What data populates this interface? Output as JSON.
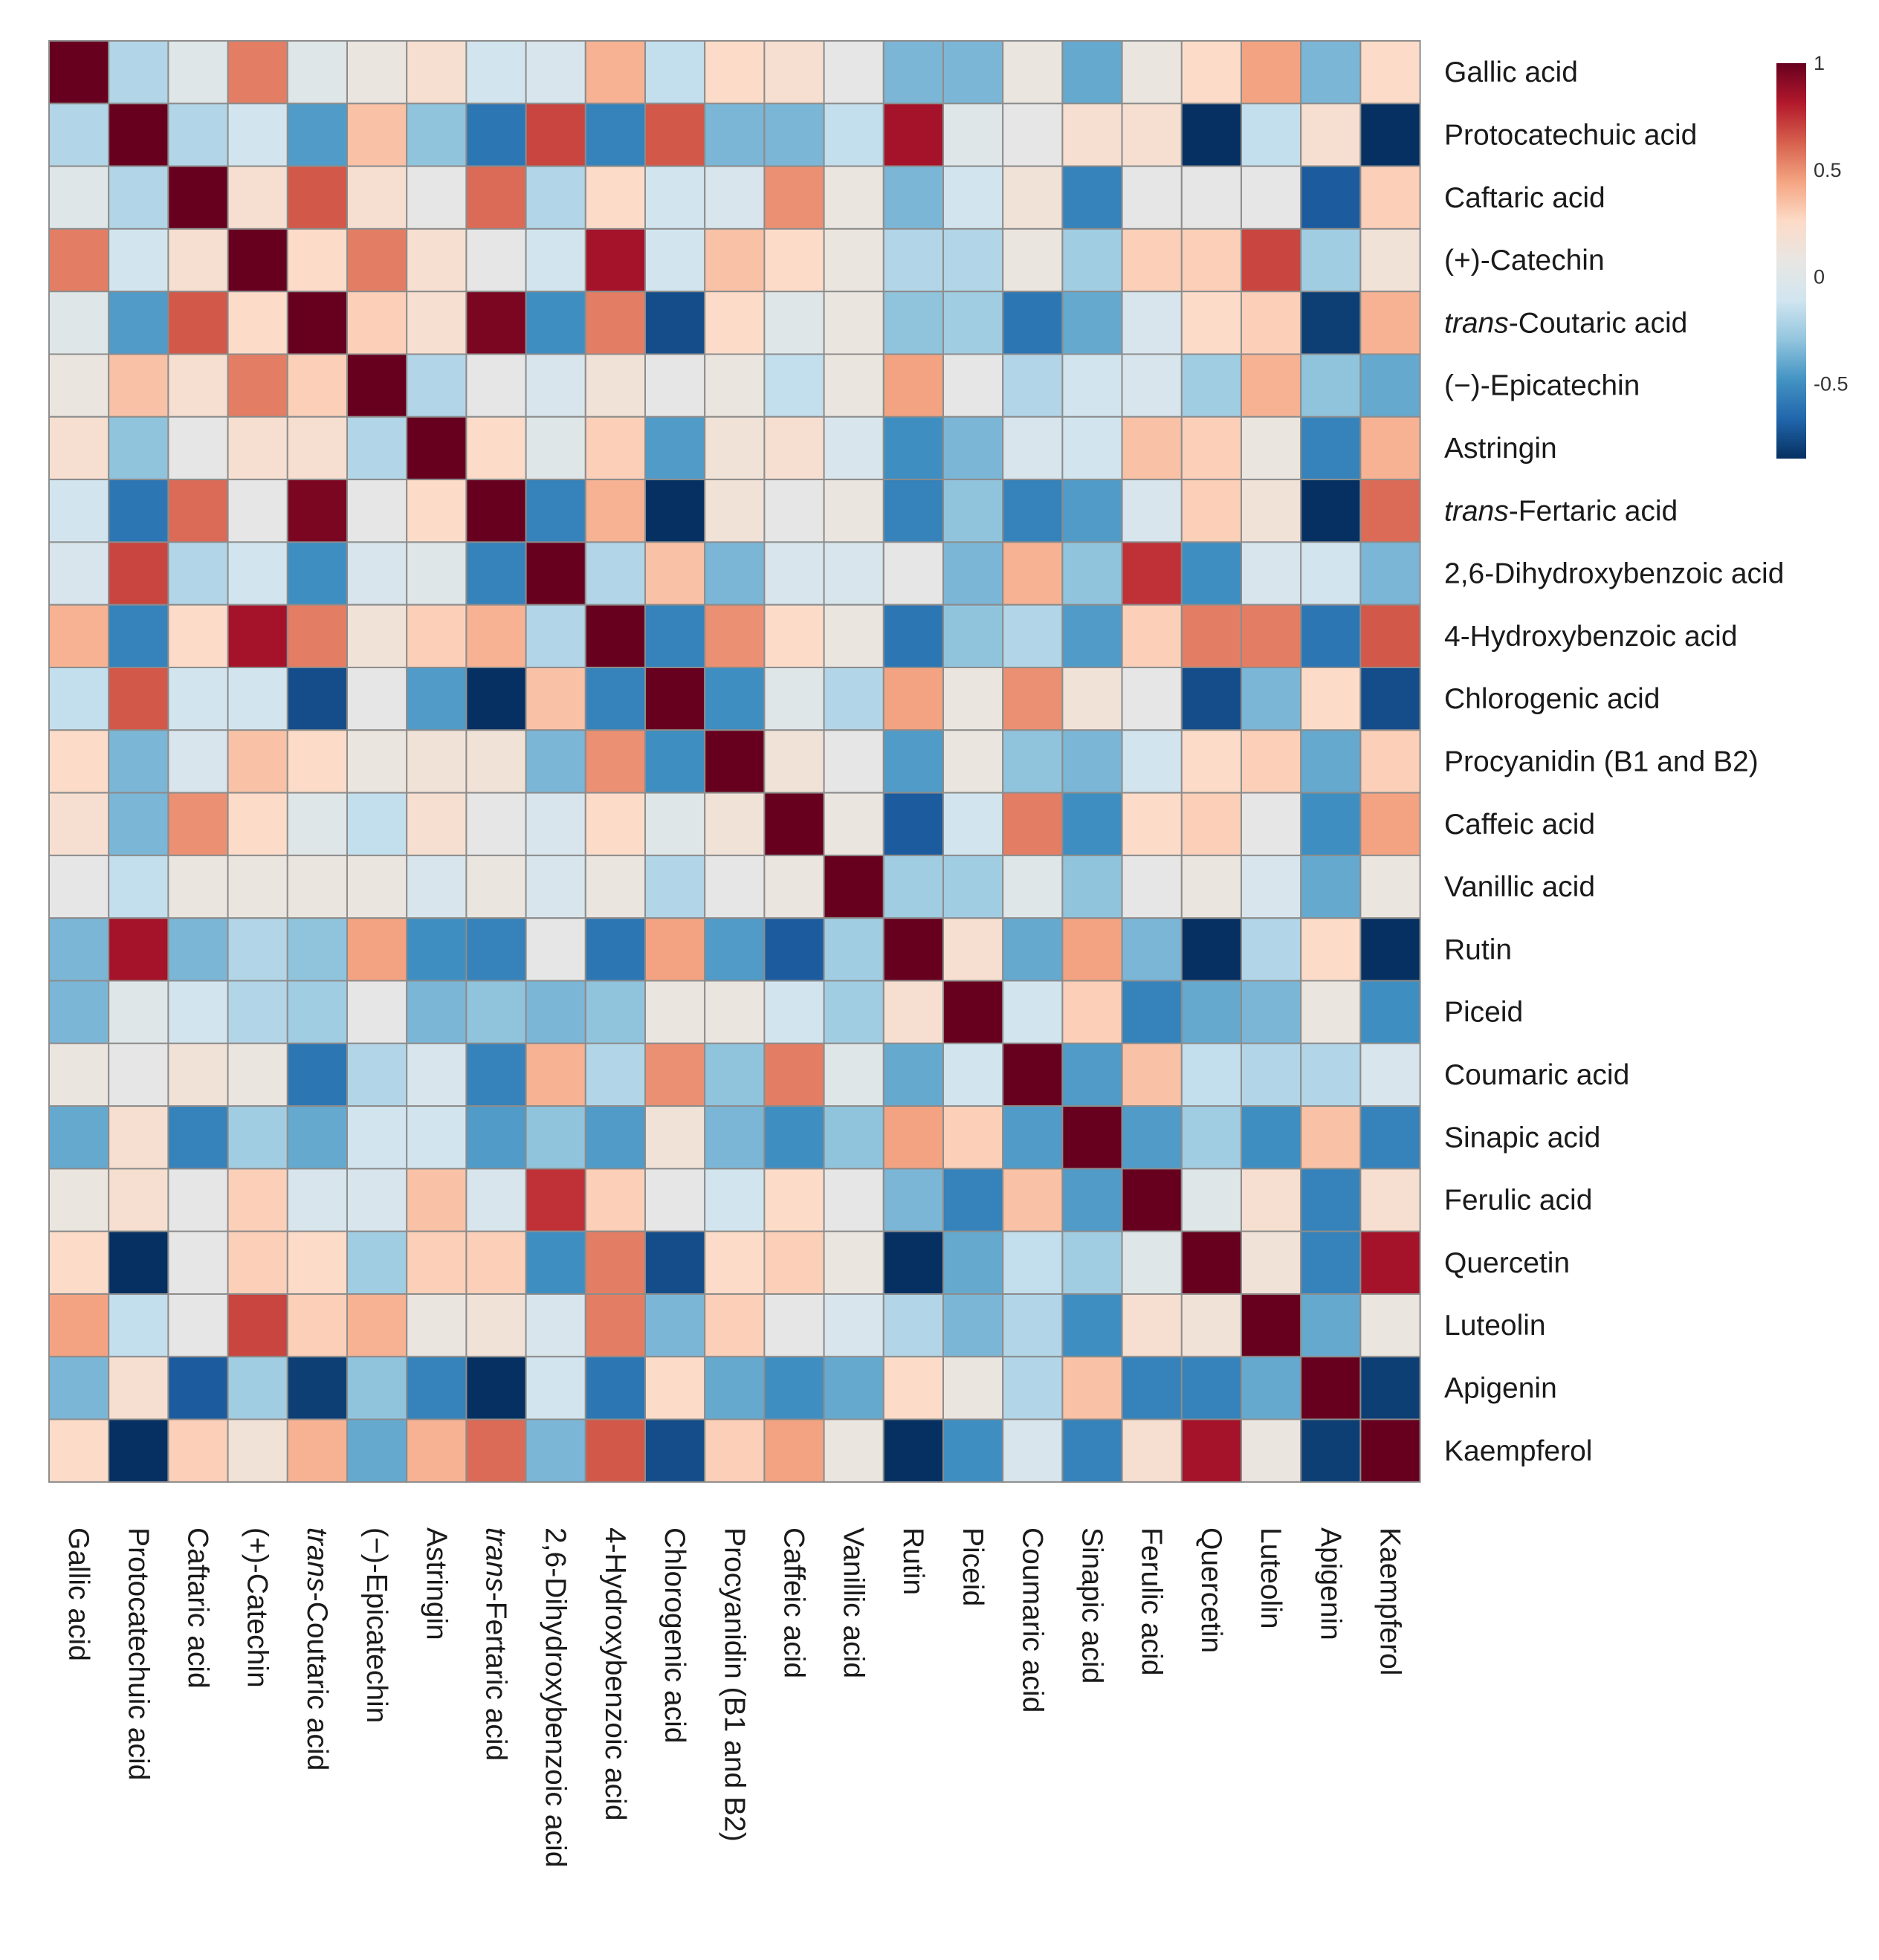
{
  "chart_data": {
    "type": "heatmap",
    "title": "",
    "xlabel": "",
    "ylabel": "",
    "labels": [
      {
        "prefix": "",
        "text": "Gallic acid"
      },
      {
        "prefix": "",
        "text": "Protocatechuic acid"
      },
      {
        "prefix": "",
        "text": "Caftaric acid"
      },
      {
        "prefix": "",
        "text": "(+)-Catechin"
      },
      {
        "prefix": "trans",
        "text": "-Coutaric acid"
      },
      {
        "prefix": "",
        "text": "(−)-Epicatechin"
      },
      {
        "prefix": "",
        "text": "Astringin"
      },
      {
        "prefix": "trans",
        "text": "-Fertaric acid"
      },
      {
        "prefix": "",
        "text": "2,6-Dihydroxybenzoic acid"
      },
      {
        "prefix": "",
        "text": "4-Hydroxybenzoic acid"
      },
      {
        "prefix": "",
        "text": "Chlorogenic acid"
      },
      {
        "prefix": "",
        "text": "Procyanidin (B1 and B2)"
      },
      {
        "prefix": "",
        "text": "Caffeic acid"
      },
      {
        "prefix": "",
        "text": "Vanillic acid"
      },
      {
        "prefix": "",
        "text": "Rutin"
      },
      {
        "prefix": "",
        "text": "Piceid"
      },
      {
        "prefix": "",
        "text": "Coumaric acid"
      },
      {
        "prefix": "",
        "text": "Sinapic acid"
      },
      {
        "prefix": "",
        "text": "Ferulic acid"
      },
      {
        "prefix": "",
        "text": "Quercetin"
      },
      {
        "prefix": "",
        "text": "Luteolin"
      },
      {
        "prefix": "",
        "text": "Apigenin"
      },
      {
        "prefix": "",
        "text": "Kaempferol"
      }
    ],
    "values": [
      [
        1,
        -0.2,
        0,
        0.55,
        0,
        0.1,
        0.2,
        -0.1,
        -0.05,
        0.4,
        -0.15,
        0.25,
        0.2,
        0.05,
        -0.35,
        -0.35,
        0.1,
        -0.4,
        0.1,
        0.25,
        0.45,
        -0.35,
        0.25
      ],
      [
        -0.2,
        1,
        -0.2,
        -0.1,
        -0.45,
        0.35,
        -0.3,
        -0.6,
        0.7,
        -0.55,
        0.65,
        -0.35,
        -0.35,
        -0.15,
        0.85,
        0,
        0.05,
        0.2,
        0.2,
        -0.9,
        -0.15,
        0.2,
        -0.85
      ],
      [
        0,
        -0.2,
        1,
        0.2,
        0.65,
        0.2,
        0.05,
        0.6,
        -0.2,
        0.25,
        -0.1,
        -0.05,
        0.5,
        0.1,
        -0.35,
        -0.1,
        0.15,
        -0.55,
        0.05,
        0.05,
        0.05,
        -0.7,
        0.3
      ],
      [
        0.55,
        -0.1,
        0.2,
        1,
        0.25,
        0.55,
        0.2,
        0.05,
        -0.1,
        0.85,
        -0.1,
        0.35,
        0.25,
        0.1,
        -0.2,
        -0.2,
        0.1,
        -0.25,
        0.3,
        0.3,
        0.7,
        -0.25,
        0.15
      ],
      [
        0,
        -0.45,
        0.65,
        0.25,
        1,
        0.3,
        0.2,
        0.95,
        -0.5,
        0.55,
        -0.75,
        0.25,
        0,
        0.1,
        -0.3,
        -0.25,
        -0.6,
        -0.4,
        -0.05,
        0.25,
        0.3,
        -0.8,
        0.4
      ],
      [
        0.1,
        0.35,
        0.2,
        0.55,
        0.3,
        1,
        -0.2,
        0.05,
        -0.05,
        0.15,
        0.05,
        0.1,
        -0.15,
        0.1,
        0.45,
        0.05,
        -0.2,
        -0.1,
        -0.05,
        -0.25,
        0.4,
        -0.3,
        -0.4
      ],
      [
        0.2,
        -0.3,
        0.05,
        0.2,
        0.2,
        -0.2,
        1,
        0.25,
        0,
        0.3,
        -0.45,
        0.15,
        0.2,
        -0.05,
        -0.5,
        -0.35,
        -0.05,
        -0.1,
        0.35,
        0.3,
        0.1,
        -0.55,
        0.4
      ],
      [
        -0.1,
        -0.6,
        0.6,
        0.05,
        0.95,
        0.05,
        0.25,
        1,
        -0.55,
        0.4,
        -0.9,
        0.15,
        0.05,
        0.1,
        -0.55,
        -0.3,
        -0.55,
        -0.45,
        -0.05,
        0.3,
        0.15,
        -0.9,
        0.6
      ],
      [
        -0.05,
        0.7,
        -0.2,
        -0.1,
        -0.5,
        -0.05,
        0,
        -0.55,
        1,
        -0.2,
        0.35,
        -0.35,
        -0.05,
        -0.05,
        0.05,
        -0.35,
        0.4,
        -0.3,
        0.75,
        -0.5,
        -0.05,
        -0.1,
        -0.35
      ],
      [
        0.4,
        -0.55,
        0.25,
        0.85,
        0.55,
        0.15,
        0.3,
        0.4,
        -0.2,
        1,
        -0.55,
        0.5,
        0.25,
        0.1,
        -0.6,
        -0.3,
        -0.2,
        -0.45,
        0.3,
        0.55,
        0.55,
        -0.6,
        0.65
      ],
      [
        -0.15,
        0.65,
        -0.1,
        -0.1,
        -0.75,
        0.05,
        -0.45,
        -0.9,
        0.35,
        -0.55,
        1,
        -0.5,
        0,
        -0.2,
        0.45,
        0.1,
        0.5,
        0.15,
        0.05,
        -0.75,
        -0.35,
        0.25,
        -0.75
      ],
      [
        0.25,
        -0.35,
        -0.05,
        0.35,
        0.25,
        0.1,
        0.15,
        0.15,
        -0.35,
        0.5,
        -0.5,
        1,
        0.15,
        0.05,
        -0.45,
        0.1,
        -0.3,
        -0.35,
        -0.1,
        0.25,
        0.3,
        -0.4,
        0.3
      ],
      [
        0.2,
        -0.35,
        0.5,
        0.25,
        0,
        -0.15,
        0.2,
        0.05,
        -0.05,
        0.25,
        0,
        0.15,
        1,
        0.1,
        -0.7,
        -0.1,
        0.55,
        -0.5,
        0.25,
        0.3,
        0.05,
        -0.5,
        0.45
      ],
      [
        0.05,
        -0.15,
        0.1,
        0.1,
        0.1,
        0.1,
        -0.05,
        0.1,
        -0.05,
        0.1,
        -0.2,
        0.05,
        0.1,
        1,
        -0.25,
        -0.25,
        0,
        -0.3,
        0.05,
        0.1,
        -0.05,
        -0.4,
        0.1
      ],
      [
        -0.35,
        0.85,
        -0.35,
        -0.2,
        -0.3,
        0.45,
        -0.5,
        -0.55,
        0.05,
        -0.6,
        0.45,
        -0.45,
        -0.7,
        -0.25,
        1,
        0.2,
        -0.4,
        0.45,
        -0.35,
        -0.95,
        -0.2,
        0.25,
        -1
      ],
      [
        -0.35,
        0,
        -0.1,
        -0.2,
        -0.25,
        0.05,
        -0.35,
        -0.3,
        -0.35,
        -0.3,
        0.1,
        0.1,
        -0.1,
        -0.25,
        0.2,
        1,
        -0.1,
        0.3,
        -0.55,
        -0.4,
        -0.35,
        0.1,
        -0.5
      ],
      [
        0.1,
        0.05,
        0.15,
        0.1,
        -0.6,
        -0.2,
        -0.05,
        -0.55,
        0.4,
        -0.2,
        0.5,
        -0.3,
        0.55,
        0,
        -0.4,
        -0.1,
        1,
        -0.45,
        0.35,
        -0.15,
        -0.2,
        -0.2,
        -0.05
      ],
      [
        -0.4,
        0.2,
        -0.55,
        -0.25,
        -0.4,
        -0.1,
        -0.1,
        -0.45,
        -0.3,
        -0.45,
        0.15,
        -0.35,
        -0.5,
        -0.3,
        0.45,
        0.3,
        -0.45,
        1,
        -0.45,
        -0.25,
        -0.5,
        0.35,
        -0.55
      ],
      [
        0.1,
        0.2,
        0.05,
        0.3,
        -0.05,
        -0.05,
        0.35,
        -0.05,
        0.75,
        0.3,
        0.05,
        -0.1,
        0.25,
        0.05,
        -0.35,
        -0.55,
        0.35,
        -0.45,
        1,
        0,
        0.2,
        -0.55,
        0.2
      ],
      [
        0.25,
        -0.9,
        0.05,
        0.3,
        0.25,
        -0.25,
        0.3,
        0.3,
        -0.5,
        0.55,
        -0.75,
        0.25,
        0.3,
        0.1,
        -0.95,
        -0.4,
        -0.15,
        -0.25,
        0,
        1,
        0.15,
        -0.55,
        0.85
      ],
      [
        0.45,
        -0.15,
        0.05,
        0.7,
        0.3,
        0.4,
        0.1,
        0.15,
        -0.05,
        0.55,
        -0.35,
        0.3,
        0.05,
        -0.05,
        -0.2,
        -0.35,
        -0.2,
        -0.5,
        0.2,
        0.15,
        1,
        -0.4,
        0.1
      ],
      [
        -0.35,
        0.2,
        -0.7,
        -0.25,
        -0.8,
        -0.3,
        -0.55,
        -0.9,
        -0.1,
        -0.6,
        0.25,
        -0.4,
        -0.5,
        -0.4,
        0.25,
        0.1,
        -0.2,
        0.35,
        -0.55,
        -0.55,
        -0.4,
        1,
        -0.8
      ],
      [
        0.25,
        -0.85,
        0.3,
        0.15,
        0.4,
        -0.4,
        0.4,
        0.6,
        -0.35,
        0.65,
        -0.75,
        0.3,
        0.45,
        0.1,
        -1,
        -0.5,
        -0.05,
        -0.55,
        0.2,
        0.85,
        0.1,
        -0.8,
        1
      ]
    ],
    "colorbar": {
      "range": [
        -0.85,
        1
      ],
      "ticks": [
        {
          "value": 1,
          "label": "1"
        },
        {
          "value": 0.5,
          "label": "0.5"
        },
        {
          "value": 0,
          "label": "0"
        },
        {
          "value": -0.5,
          "label": "-0.5"
        }
      ],
      "palette": [
        "#053061",
        "#2166ac",
        "#4393c3",
        "#92c5de",
        "#d1e5f0",
        "#e8e6e3",
        "#fddbc7",
        "#f4a582",
        "#d6604d",
        "#b2182b",
        "#67001f"
      ]
    },
    "grid": true,
    "cell_border_color": "#8c8c8c"
  }
}
